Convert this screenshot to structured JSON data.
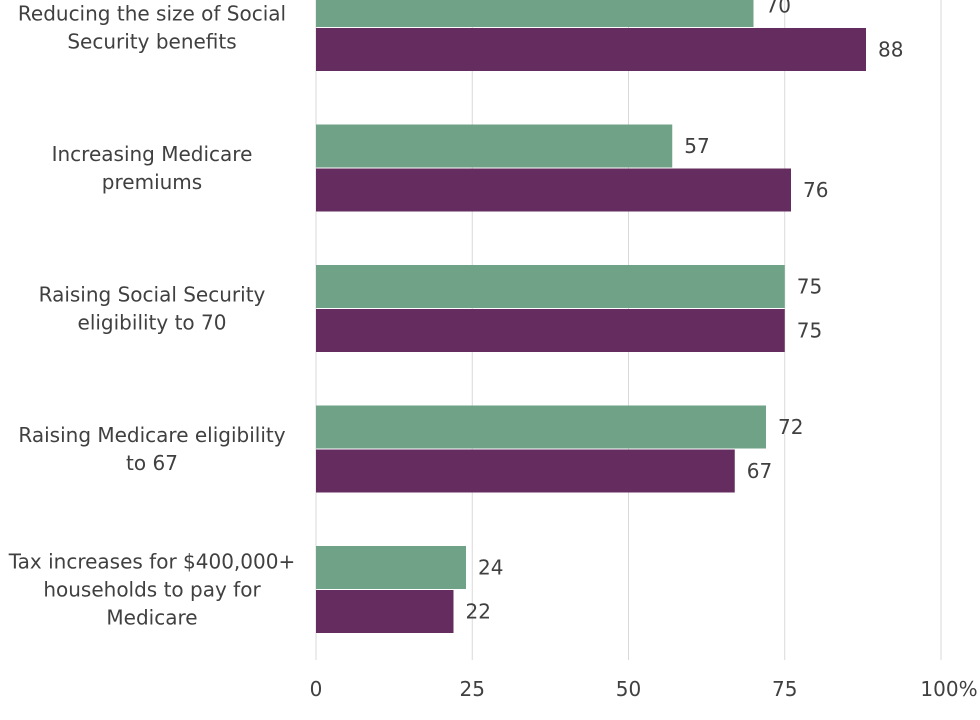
{
  "chart_data": {
    "type": "bar",
    "orientation": "horizontal",
    "categories": [
      [
        "Reducing the size of Social",
        "Security benefits"
      ],
      [
        "Increasing Medicare",
        "premiums"
      ],
      [
        "Raising Social Security",
        "eligibility to 70"
      ],
      [
        "Raising Medicare eligibility",
        "to 67"
      ],
      [
        "Tax increases for $400,000+",
        "households to pay for",
        "Medicare"
      ]
    ],
    "series": [
      {
        "color": "#6fa287",
        "values": [
          70,
          57,
          75,
          72,
          24
        ]
      },
      {
        "color": "#652d5f",
        "values": [
          88,
          76,
          75,
          67,
          22
        ]
      }
    ],
    "xlim": [
      0,
      100
    ],
    "xticks": [
      "0",
      "25",
      "50",
      "75",
      "100%"
    ],
    "grid": true,
    "legend": "none"
  }
}
